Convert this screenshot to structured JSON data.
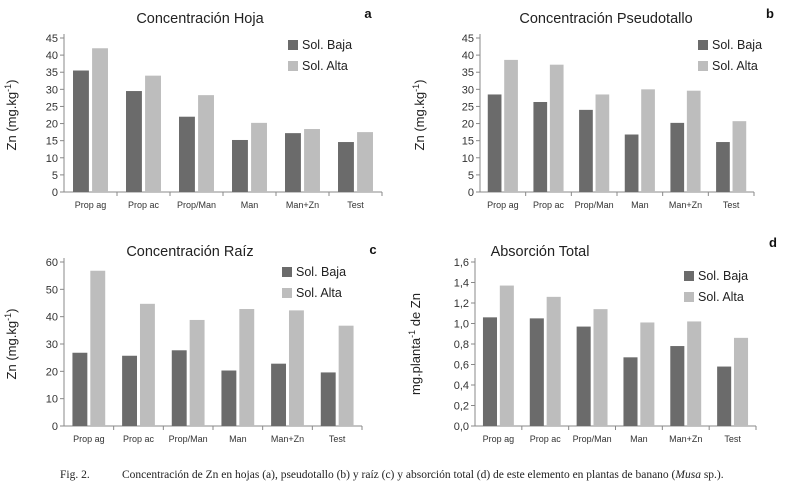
{
  "caption": {
    "label": "Fig. 2.",
    "text_before": "Concentración de Zn en hojas (a), pseudotallo (b) y raíz (c) y absorción total  (d) de este elemento en plantas de banano (",
    "species": "Musa",
    "text_after": " sp.)."
  },
  "colors": {
    "baja": "#6b6b6b",
    "alta": "#bdbdbd"
  },
  "chart_data": [
    {
      "type": "bar",
      "panel": "a",
      "title": "Concentración Hoja",
      "ylabel": "Zn (mg.kg-1)",
      "categories": [
        "Prop ag",
        "Prop ac",
        "Prop/Man",
        "Man",
        "Man+Zn",
        "Test"
      ],
      "ylim": [
        0,
        45
      ],
      "yticks": [
        "0",
        "5",
        "10",
        "15",
        "20",
        "25",
        "30",
        "35",
        "40",
        "45"
      ],
      "series": [
        {
          "name": "Sol. Baja",
          "values": [
            35.5,
            29.5,
            22,
            15.2,
            17.2,
            14.6
          ]
        },
        {
          "name": "Sol. Alta",
          "values": [
            42,
            34,
            28.3,
            20.2,
            18.4,
            17.5
          ]
        }
      ],
      "legend": "top-right"
    },
    {
      "type": "bar",
      "panel": "b",
      "title": "Concentración Pseudotallo",
      "ylabel": "Zn (mg.kg-1)",
      "categories": [
        "Prop ag",
        "Prop ac",
        "Prop/Man",
        "Man",
        "Man+Zn",
        "Test"
      ],
      "ylim": [
        0,
        45
      ],
      "yticks": [
        "0",
        "5",
        "10",
        "15",
        "20",
        "25",
        "30",
        "35",
        "40",
        "45"
      ],
      "series": [
        {
          "name": "Sol. Baja",
          "values": [
            28.5,
            26.3,
            24,
            16.8,
            20.2,
            14.6
          ]
        },
        {
          "name": "Sol. Alta",
          "values": [
            38.6,
            37.2,
            28.5,
            30,
            29.6,
            20.7
          ]
        }
      ],
      "legend": "top-right"
    },
    {
      "type": "bar",
      "panel": "c",
      "title": "Concentración Raíz",
      "ylabel": "Zn (mg.kg-1)",
      "categories": [
        "Prop ag",
        "Prop ac",
        "Prop/Man",
        "Man",
        "Man+Zn",
        "Test"
      ],
      "ylim": [
        0,
        60
      ],
      "yticks": [
        "0",
        "10",
        "20",
        "30",
        "40",
        "50",
        "60"
      ],
      "series": [
        {
          "name": "Sol. Baja",
          "values": [
            26.8,
            25.7,
            27.7,
            20.3,
            22.8,
            19.6
          ]
        },
        {
          "name": "Sol. Alta",
          "values": [
            56.8,
            44.7,
            38.8,
            42.8,
            42.3,
            36.7
          ]
        }
      ],
      "legend": "top-right"
    },
    {
      "type": "bar",
      "panel": "d",
      "title": "Absorción Total",
      "ylabel": "mg.planta-1 de Zn",
      "categories": [
        "Prop ag",
        "Prop ac",
        "Prop/Man",
        "Man",
        "Man+Zn",
        "Test"
      ],
      "ylim": [
        0,
        1.6
      ],
      "yticks": [
        "0,0",
        "0,2",
        "0,4",
        "0,6",
        "0,8",
        "1,0",
        "1,2",
        "1,4",
        "1,6"
      ],
      "series": [
        {
          "name": "Sol. Baja",
          "values": [
            1.06,
            1.05,
            0.97,
            0.67,
            0.78,
            0.58
          ]
        },
        {
          "name": "Sol. Alta",
          "values": [
            1.37,
            1.26,
            1.14,
            1.01,
            1.02,
            0.86
          ]
        }
      ],
      "legend": "top-right"
    }
  ]
}
